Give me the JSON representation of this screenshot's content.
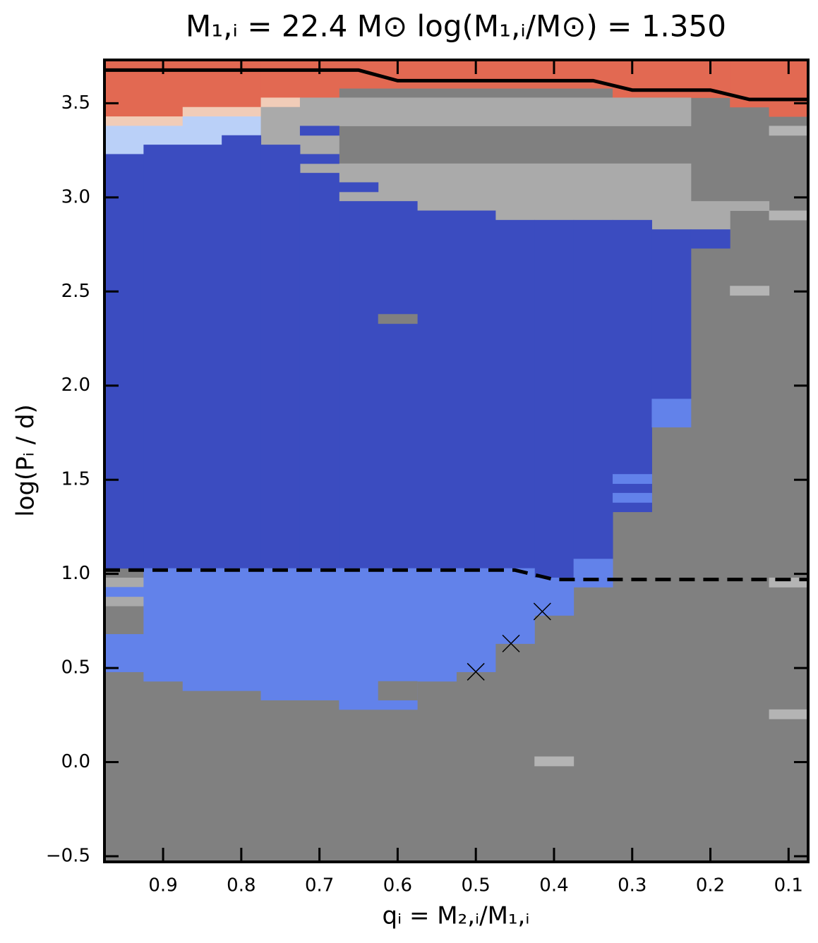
{
  "chart_data": {
    "type": "heatmap",
    "title": "M₁,ᵢ = 22.4 M⊙    log(M₁,ᵢ/M⊙) = 1.350",
    "xlabel": "qᵢ = M₂,ᵢ/M₁,ᵢ",
    "ylabel": "log(Pᵢ / d)",
    "xlim": [
      0.975,
      0.075
    ],
    "ylim": [
      -0.53,
      3.73
    ],
    "xticks": [
      0.9,
      0.8,
      0.7,
      0.6,
      0.5,
      0.4,
      0.3,
      0.2,
      0.1
    ],
    "yticks": [
      {
        "value": -0.5,
        "label": "−0.5"
      },
      {
        "value": 0,
        "label": "0.0"
      },
      0.5,
      {
        "value": 1,
        "label": "1.0"
      },
      1.5,
      {
        "value": 2,
        "label": "2.0"
      },
      2.5,
      {
        "value": 3,
        "label": "3.0"
      },
      3.5
    ],
    "series": [
      {
        "color": "#808080",
        "rects": [
          [
            0.975,
            0.075,
            -0.53,
            3.73
          ]
        ]
      },
      {
        "color": "#e26952",
        "rects": [
          [
            0.975,
            0.875,
            3.43,
            3.73
          ],
          [
            0.875,
            0.775,
            3.48,
            3.73
          ],
          [
            0.775,
            0.675,
            3.53,
            3.73
          ],
          [
            0.675,
            0.325,
            3.58,
            3.73
          ],
          [
            0.325,
            0.175,
            3.53,
            3.73
          ],
          [
            0.175,
            0.125,
            3.48,
            3.73
          ],
          [
            0.125,
            0.075,
            3.43,
            3.73
          ]
        ]
      },
      {
        "color": "#f1ccb8",
        "rects": [
          [
            0.975,
            0.875,
            3.38,
            3.43
          ],
          [
            0.875,
            0.775,
            3.43,
            3.48
          ],
          [
            0.775,
            0.725,
            3.48,
            3.53
          ]
        ]
      },
      {
        "color": "#bad0f8",
        "rects": [
          [
            0.975,
            0.925,
            3.23,
            3.38
          ],
          [
            0.925,
            0.875,
            3.28,
            3.38
          ],
          [
            0.875,
            0.825,
            3.28,
            3.43
          ],
          [
            0.825,
            0.775,
            3.33,
            3.43
          ]
        ]
      },
      {
        "color": "#aaaaaa",
        "rects": [
          [
            0.775,
            0.725,
            3.28,
            3.48
          ],
          [
            0.725,
            0.675,
            3.13,
            3.18
          ],
          [
            0.725,
            0.675,
            3.23,
            3.33
          ],
          [
            0.725,
            0.675,
            3.38,
            3.53
          ],
          [
            0.675,
            0.225,
            3.38,
            3.53
          ],
          [
            0.675,
            0.225,
            2.83,
            3.18
          ],
          [
            0.225,
            0.175,
            2.83,
            2.98
          ],
          [
            0.175,
            0.125,
            2.93,
            2.98
          ],
          [
            0.975,
            0.925,
            0.93,
            0.98
          ],
          [
            0.975,
            0.925,
            0.83,
            0.88
          ]
        ]
      },
      {
        "color": "#3b4cc0",
        "rects": [
          [
            0.975,
            0.925,
            1.03,
            3.23
          ],
          [
            0.925,
            0.825,
            1.03,
            3.28
          ],
          [
            0.825,
            0.775,
            1.03,
            3.33
          ],
          [
            0.775,
            0.725,
            1.03,
            3.28
          ],
          [
            0.725,
            0.675,
            1.03,
            3.13
          ],
          [
            0.725,
            0.675,
            3.18,
            3.23
          ],
          [
            0.725,
            0.675,
            3.33,
            3.38
          ],
          [
            0.675,
            0.625,
            1.03,
            2.98
          ],
          [
            0.675,
            0.625,
            3.03,
            3.08
          ],
          [
            0.625,
            0.575,
            1.03,
            2.98
          ],
          [
            0.575,
            0.475,
            1.03,
            2.93
          ],
          [
            0.475,
            0.425,
            1.03,
            2.88
          ],
          [
            0.425,
            0.375,
            0.98,
            2.88
          ],
          [
            0.375,
            0.325,
            1.08,
            2.88
          ],
          [
            0.325,
            0.275,
            1.33,
            2.88
          ],
          [
            0.275,
            0.225,
            1.93,
            2.83
          ],
          [
            0.225,
            0.175,
            2.73,
            2.83
          ]
        ]
      },
      {
        "color": "#6282ea",
        "rects": [
          [
            0.975,
            0.925,
            0.48,
            0.68
          ],
          [
            0.975,
            0.925,
            0.88,
            0.93
          ],
          [
            0.925,
            0.875,
            0.43,
            1.03
          ],
          [
            0.875,
            0.775,
            0.38,
            1.03
          ],
          [
            0.775,
            0.675,
            0.33,
            1.03
          ],
          [
            0.675,
            0.575,
            0.28,
            1.03
          ],
          [
            0.575,
            0.525,
            0.43,
            1.03
          ],
          [
            0.525,
            0.475,
            0.48,
            1.03
          ],
          [
            0.475,
            0.425,
            0.63,
            1.03
          ],
          [
            0.425,
            0.375,
            0.78,
            0.98
          ],
          [
            0.375,
            0.325,
            0.93,
            1.08
          ],
          [
            0.325,
            0.275,
            1.48,
            1.53
          ],
          [
            0.325,
            0.275,
            1.38,
            1.43
          ],
          [
            0.275,
            0.225,
            1.78,
            1.93
          ]
        ]
      },
      {
        "color": "#808080",
        "rects": [
          [
            0.625,
            0.575,
            0.33,
            0.43
          ],
          [
            0.625,
            0.575,
            2.33,
            2.38
          ]
        ]
      },
      {
        "color": "#b4b4b4",
        "rects": [
          [
            0.175,
            0.125,
            2.48,
            2.53
          ],
          [
            0.125,
            0.075,
            3.33,
            3.38
          ],
          [
            0.125,
            0.075,
            2.88,
            2.93
          ],
          [
            0.125,
            0.075,
            0.93,
            0.98
          ],
          [
            0.125,
            0.075,
            0.23,
            0.28
          ],
          [
            0.425,
            0.375,
            -0.02,
            0.03
          ]
        ]
      }
    ],
    "markers": {
      "color": "#000000",
      "x": [
        0.5,
        0.455,
        0.415
      ],
      "y": [
        0.48,
        0.63,
        0.8
      ]
    },
    "lines": [
      {
        "color": "#000000",
        "dashed": false,
        "x": [
          0.975,
          0.65,
          0.6,
          0.35,
          0.3,
          0.2,
          0.15,
          0.075
        ],
        "y": [
          3.676,
          3.676,
          3.62,
          3.62,
          3.57,
          3.57,
          3.52,
          3.52
        ]
      },
      {
        "color": "#000000",
        "dashed": true,
        "x": [
          0.975,
          0.45,
          0.4,
          0.075
        ],
        "y": [
          1.02,
          1.02,
          0.97,
          0.97
        ]
      }
    ]
  }
}
